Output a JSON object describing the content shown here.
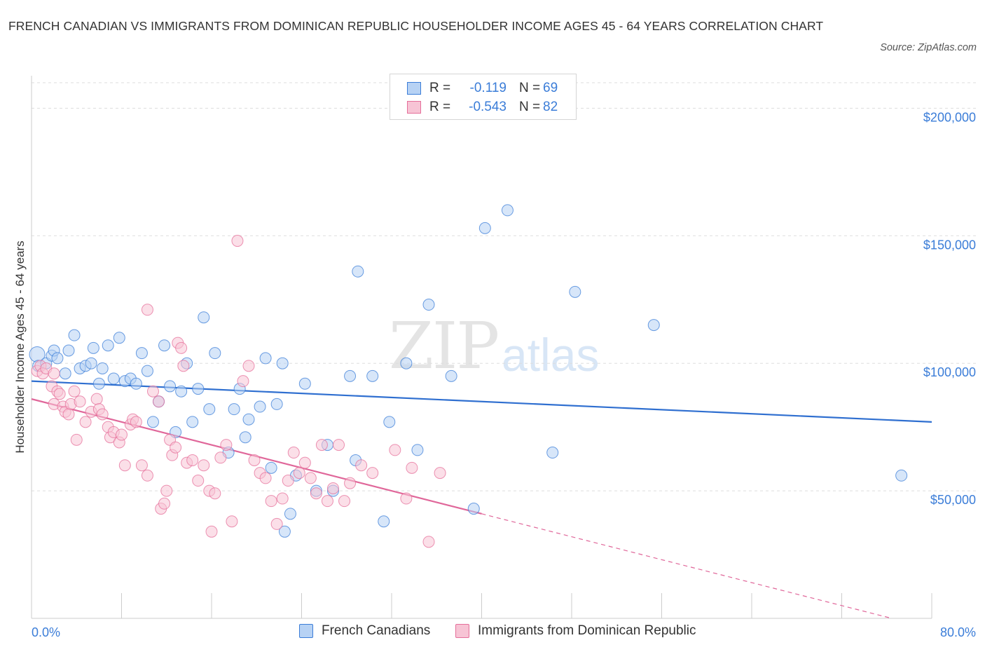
{
  "title": "FRENCH CANADIAN VS IMMIGRANTS FROM DOMINICAN REPUBLIC HOUSEHOLDER INCOME AGES 45 - 64 YEARS CORRELATION CHART",
  "source": "Source: ZipAtlas.com",
  "watermark": {
    "zip": "ZIP",
    "atlas": "atlas"
  },
  "colors": {
    "blue": "#3b7dd8",
    "blue_fill": "#b7d2f4",
    "blue_line": "#2f6fd0",
    "pink": "#e56f9a",
    "pink_fill": "#f7c4d5",
    "pink_line": "#e0679a",
    "grid": "#dddddd",
    "axis_text": "#3b7dd8"
  },
  "legend": {
    "rows": [
      {
        "r_label": "R =",
        "r_value": "-0.119",
        "n_label": "N =",
        "n_value": "69"
      },
      {
        "r_label": "R =",
        "r_value": "-0.543",
        "n_label": "N =",
        "n_value": "82"
      }
    ]
  },
  "bottom_legend": [
    "French Canadians",
    "Immigrants from Dominican Republic"
  ],
  "chart_data": {
    "type": "scatter",
    "title": "FRENCH CANADIAN VS IMMIGRANTS FROM DOMINICAN REPUBLIC HOUSEHOLDER INCOME AGES 45 - 64 YEARS CORRELATION CHART",
    "xlabel": "",
    "ylabel": "Householder Income Ages 45 - 64 years",
    "xlim": [
      0,
      80
    ],
    "ylim": [
      0,
      210000
    ],
    "x_tick_labels": [
      "0.0%",
      "80.0%"
    ],
    "y_ticks": [
      50000,
      100000,
      150000,
      200000
    ],
    "y_tick_labels": [
      "$50,000",
      "$100,000",
      "$150,000",
      "$200,000"
    ],
    "grid": true,
    "legend_position": "top-center",
    "series": [
      {
        "name": "French Canadians",
        "color": "#3b7dd8",
        "trend": {
          "x": [
            0,
            80
          ],
          "y": [
            93000,
            77000
          ]
        },
        "points": [
          [
            0.5,
            103500
          ],
          [
            0.6,
            99000
          ],
          [
            1.3,
            100000
          ],
          [
            1.8,
            103000
          ],
          [
            2.0,
            105000
          ],
          [
            2.3,
            102000
          ],
          [
            3.3,
            105000
          ],
          [
            3.8,
            111000
          ],
          [
            4.3,
            98000
          ],
          [
            4.8,
            99000
          ],
          [
            5.3,
            100000
          ],
          [
            5.5,
            106000
          ],
          [
            6.3,
            98000
          ],
          [
            6.8,
            107000
          ],
          [
            7.3,
            94000
          ],
          [
            7.8,
            110000
          ],
          [
            8.3,
            93000
          ],
          [
            8.8,
            94000
          ],
          [
            9.3,
            92000
          ],
          [
            9.8,
            104000
          ],
          [
            10.3,
            97000
          ],
          [
            10.8,
            77000
          ],
          [
            11.3,
            85000
          ],
          [
            11.8,
            107000
          ],
          [
            12.3,
            91000
          ],
          [
            12.8,
            73000
          ],
          [
            13.3,
            89000
          ],
          [
            13.8,
            100000
          ],
          [
            14.3,
            77000
          ],
          [
            14.8,
            90000
          ],
          [
            15.3,
            118000
          ],
          [
            15.8,
            82000
          ],
          [
            16.3,
            104000
          ],
          [
            17.5,
            65000
          ],
          [
            18.0,
            82000
          ],
          [
            18.5,
            90000
          ],
          [
            19.0,
            71000
          ],
          [
            19.3,
            78000
          ],
          [
            20.3,
            83000
          ],
          [
            20.8,
            102000
          ],
          [
            21.3,
            59000
          ],
          [
            21.8,
            84000
          ],
          [
            22.3,
            100000
          ],
          [
            23.0,
            41000
          ],
          [
            23.5,
            56000
          ],
          [
            24.3,
            92000
          ],
          [
            25.3,
            50000
          ],
          [
            26.3,
            68000
          ],
          [
            26.8,
            50000
          ],
          [
            28.3,
            95000
          ],
          [
            28.8,
            62000
          ],
          [
            29.0,
            136000
          ],
          [
            30.3,
            95000
          ],
          [
            31.3,
            38000
          ],
          [
            31.8,
            77000
          ],
          [
            33.3,
            100000
          ],
          [
            34.3,
            66000
          ],
          [
            35.3,
            123000
          ],
          [
            37.3,
            95000
          ],
          [
            39.3,
            43000
          ],
          [
            40.3,
            153000
          ],
          [
            42.3,
            160000
          ],
          [
            46.3,
            65000
          ],
          [
            48.3,
            128000
          ],
          [
            55.3,
            115000
          ],
          [
            77.3,
            56000
          ],
          [
            22.5,
            34000
          ],
          [
            6.0,
            92000
          ],
          [
            3.0,
            96000
          ]
        ]
      },
      {
        "name": "Immigrants from Dominican Republic",
        "color": "#e56f9a",
        "trend": {
          "x": [
            0,
            40
          ],
          "y": [
            86000,
            41000
          ],
          "dashed_extension": {
            "x": [
              40,
              80
            ],
            "y": [
              41000,
              -4000
            ]
          }
        },
        "points": [
          [
            0.5,
            97000
          ],
          [
            0.8,
            99000
          ],
          [
            1.0,
            96000
          ],
          [
            1.3,
            98000
          ],
          [
            1.8,
            91000
          ],
          [
            2.0,
            84000
          ],
          [
            2.3,
            89000
          ],
          [
            2.5,
            88000
          ],
          [
            2.8,
            83000
          ],
          [
            3.0,
            81000
          ],
          [
            3.3,
            80000
          ],
          [
            3.5,
            84000
          ],
          [
            3.8,
            89000
          ],
          [
            4.3,
            85000
          ],
          [
            4.8,
            77000
          ],
          [
            5.3,
            81000
          ],
          [
            5.8,
            86000
          ],
          [
            6.0,
            82000
          ],
          [
            6.3,
            80000
          ],
          [
            6.8,
            75000
          ],
          [
            7.0,
            71000
          ],
          [
            7.3,
            73000
          ],
          [
            7.8,
            69000
          ],
          [
            8.3,
            60000
          ],
          [
            8.8,
            76000
          ],
          [
            9.0,
            78000
          ],
          [
            9.3,
            77000
          ],
          [
            9.8,
            60000
          ],
          [
            10.3,
            56000
          ],
          [
            10.8,
            89000
          ],
          [
            11.3,
            85000
          ],
          [
            11.5,
            43000
          ],
          [
            11.8,
            45000
          ],
          [
            12.3,
            70000
          ],
          [
            12.5,
            64000
          ],
          [
            12.8,
            67000
          ],
          [
            13.0,
            108000
          ],
          [
            13.3,
            106000
          ],
          [
            13.5,
            99000
          ],
          [
            13.8,
            61000
          ],
          [
            14.3,
            62000
          ],
          [
            14.8,
            54000
          ],
          [
            15.3,
            60000
          ],
          [
            15.8,
            50000
          ],
          [
            16.3,
            49000
          ],
          [
            16.8,
            63000
          ],
          [
            17.3,
            68000
          ],
          [
            17.8,
            38000
          ],
          [
            18.3,
            148000
          ],
          [
            18.8,
            93000
          ],
          [
            19.3,
            99000
          ],
          [
            19.8,
            62000
          ],
          [
            20.3,
            57000
          ],
          [
            20.8,
            55000
          ],
          [
            21.3,
            46000
          ],
          [
            21.8,
            37000
          ],
          [
            22.3,
            47000
          ],
          [
            22.8,
            54000
          ],
          [
            23.3,
            65000
          ],
          [
            23.8,
            57000
          ],
          [
            24.3,
            61000
          ],
          [
            24.8,
            55000
          ],
          [
            25.3,
            49000
          ],
          [
            25.8,
            68000
          ],
          [
            26.3,
            46000
          ],
          [
            26.8,
            51000
          ],
          [
            27.3,
            68000
          ],
          [
            27.8,
            46000
          ],
          [
            28.3,
            53000
          ],
          [
            29.3,
            60000
          ],
          [
            30.3,
            57000
          ],
          [
            32.3,
            66000
          ],
          [
            33.3,
            47000
          ],
          [
            33.8,
            59000
          ],
          [
            35.3,
            30000
          ],
          [
            36.3,
            57000
          ],
          [
            10.3,
            121000
          ],
          [
            16.0,
            34000
          ],
          [
            12.0,
            50000
          ],
          [
            8.0,
            72000
          ],
          [
            2.0,
            96000
          ],
          [
            4.0,
            70000
          ]
        ]
      }
    ]
  }
}
